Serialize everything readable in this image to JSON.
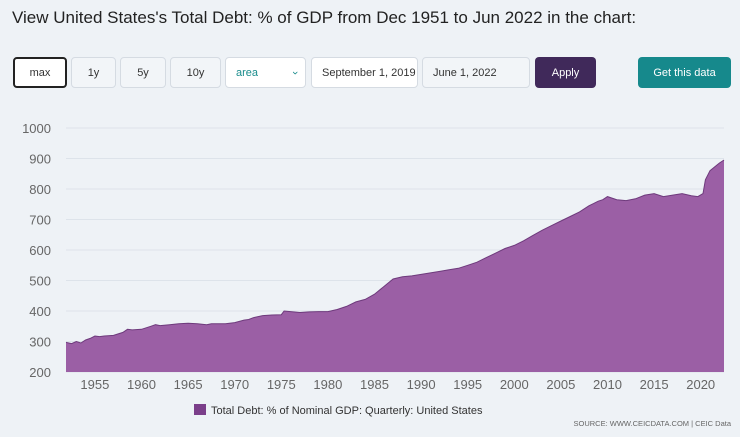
{
  "title": "View United States's Total Debt: % of GDP from Dec 1951 to Jun 2022 in the chart:",
  "controls": {
    "range_buttons": [
      "max",
      "1y",
      "5y",
      "10y"
    ],
    "active_range": "max",
    "chart_type": "area",
    "start_date": "September 1, 2019",
    "end_date": "June 1, 2022",
    "apply_label": "Apply",
    "get_data_label": "Get this data"
  },
  "colors": {
    "series_fill": "#9b5fa5",
    "series_line": "#6e3a7c",
    "legend_swatch": "#7b3f8a",
    "apply_bg": "#40295a",
    "get_data_bg": "#16898c"
  },
  "source": "SOURCE: WWW.CEICDATA.COM | CEIC Data",
  "chart_data": {
    "type": "area",
    "title": "",
    "xlabel": "",
    "ylabel": "",
    "xlim": [
      1951.9,
      2022.5
    ],
    "ylim": [
      200,
      1000
    ],
    "yticks": [
      200,
      300,
      400,
      500,
      600,
      700,
      800,
      900,
      1000
    ],
    "xticks": [
      1955,
      1960,
      1965,
      1970,
      1975,
      1980,
      1985,
      1990,
      1995,
      2000,
      2005,
      2010,
      2015,
      2020
    ],
    "legend": "bottom-center",
    "series": [
      {
        "name": "Total Debt: % of Nominal GDP: Quarterly: United States",
        "x": [
          1951.9,
          1952.5,
          1953.0,
          1953.5,
          1954.0,
          1954.5,
          1955.0,
          1955.5,
          1956.0,
          1957.0,
          1958.0,
          1958.5,
          1959.0,
          1960.0,
          1961.0,
          1961.5,
          1962.0,
          1963.0,
          1964.0,
          1965.0,
          1966.0,
          1967.0,
          1967.5,
          1968.0,
          1969.0,
          1970.0,
          1971.0,
          1971.5,
          1972.0,
          1973.0,
          1974.0,
          1975.0,
          1975.3,
          1976.0,
          1977.0,
          1978.0,
          1979.0,
          1980.0,
          1981.0,
          1982.0,
          1983.0,
          1984.0,
          1985.0,
          1986.0,
          1987.0,
          1988.0,
          1989.0,
          1990.0,
          1991.0,
          1992.0,
          1993.0,
          1994.0,
          1995.0,
          1996.0,
          1997.0,
          1998.0,
          1999.0,
          2000.0,
          2001.0,
          2002.0,
          2003.0,
          2004.0,
          2005.0,
          2006.0,
          2007.0,
          2008.0,
          2008.5,
          2009.0,
          2009.5,
          2010.0,
          2011.0,
          2012.0,
          2013.0,
          2014.0,
          2015.0,
          2016.0,
          2017.0,
          2018.0,
          2019.0,
          2019.7,
          2020.25,
          2020.5,
          2021.0,
          2022.0,
          2022.5
        ],
        "values": [
          297,
          293,
          300,
          295,
          305,
          310,
          318,
          316,
          318,
          320,
          330,
          340,
          338,
          340,
          350,
          355,
          352,
          355,
          358,
          360,
          358,
          355,
          358,
          358,
          358,
          362,
          370,
          372,
          378,
          385,
          387,
          388,
          400,
          398,
          395,
          397,
          398,
          398,
          405,
          415,
          430,
          438,
          455,
          480,
          505,
          512,
          515,
          520,
          525,
          530,
          535,
          540,
          550,
          560,
          575,
          590,
          605,
          615,
          630,
          648,
          665,
          680,
          695,
          710,
          725,
          745,
          752,
          760,
          765,
          775,
          765,
          762,
          768,
          780,
          785,
          775,
          780,
          785,
          778,
          775,
          785,
          830,
          860,
          885,
          895
        ]
      }
    ]
  }
}
